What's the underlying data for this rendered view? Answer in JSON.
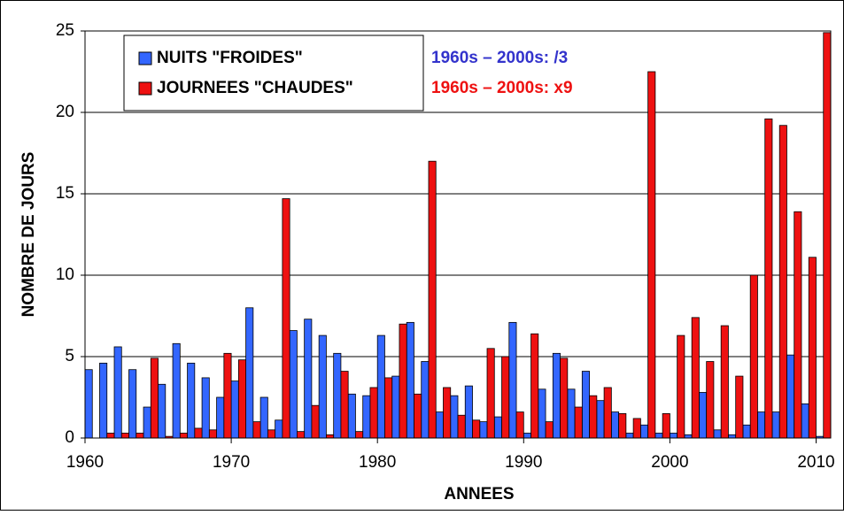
{
  "chart_data": {
    "type": "bar",
    "x_label": "ANNEES",
    "y_label": "NOMBRE DE JOURS",
    "x": [
      1960,
      1961,
      1962,
      1963,
      1964,
      1965,
      1966,
      1967,
      1968,
      1969,
      1970,
      1971,
      1972,
      1973,
      1974,
      1975,
      1976,
      1977,
      1978,
      1979,
      1980,
      1981,
      1982,
      1983,
      1984,
      1985,
      1986,
      1987,
      1988,
      1989,
      1990,
      1991,
      1992,
      1993,
      1994,
      1995,
      1996,
      1997,
      1998,
      1999,
      2000,
      2001,
      2002,
      2003,
      2004,
      2005,
      2006,
      2007,
      2008,
      2009,
      2010
    ],
    "series": [
      {
        "name": "NUITS \"FROIDES\"",
        "color": "#3366ff",
        "values": [
          4.2,
          4.6,
          5.6,
          4.2,
          1.9,
          3.3,
          5.8,
          4.6,
          3.7,
          2.5,
          3.5,
          8.0,
          2.5,
          1.1,
          6.6,
          7.3,
          6.3,
          5.2,
          2.7,
          2.6,
          6.3,
          3.8,
          7.1,
          4.7,
          1.6,
          2.6,
          3.2,
          1.0,
          1.3,
          7.1,
          0.3,
          3.0,
          5.2,
          3.0,
          4.1,
          2.3,
          1.6,
          0.3,
          0.8,
          0.3,
          0.3,
          0.2,
          2.8,
          0.5,
          0.2,
          0.8,
          1.6,
          1.6,
          5.1,
          2.1,
          0.1
        ]
      },
      {
        "name": "JOURNEES \"CHAUDES\"",
        "color": "#ee1111",
        "values": [
          0,
          0.3,
          0.3,
          0.3,
          4.9,
          0.1,
          0.3,
          0.6,
          0.5,
          5.2,
          4.8,
          1.0,
          0.5,
          14.7,
          0.4,
          2.0,
          0.2,
          4.1,
          0.4,
          3.1,
          3.7,
          7.0,
          2.7,
          17.0,
          3.1,
          1.4,
          1.1,
          5.5,
          5.0,
          1.6,
          6.4,
          1.0,
          4.9,
          1.9,
          2.6,
          3.1,
          1.5,
          1.2,
          22.5,
          1.5,
          6.3,
          7.4,
          4.7,
          6.9,
          3.8,
          10.0,
          19.6,
          19.2,
          13.9,
          11.1,
          24.9
        ]
      }
    ],
    "annotations": [
      {
        "text": "1960s – 2000s: /3",
        "color": "#3333cc"
      },
      {
        "text": "1960s – 2000s: x9",
        "color": "#ee1111"
      }
    ],
    "xlim": [
      1960,
      2011
    ],
    "xticks": [
      1960,
      1970,
      1980,
      1990,
      2000,
      2010
    ],
    "ylim": [
      0,
      25
    ],
    "yticks": [
      0,
      5,
      10,
      15,
      20,
      25
    ],
    "grid": true,
    "legend": "upper left"
  }
}
